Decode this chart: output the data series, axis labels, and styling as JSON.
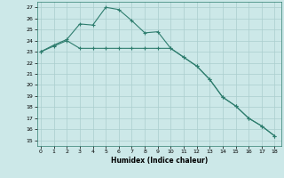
{
  "xlabel": "Humidex (Indice chaleur)",
  "x_ticks": [
    0,
    1,
    2,
    3,
    4,
    5,
    6,
    7,
    8,
    9,
    10,
    11,
    12,
    13,
    14,
    15,
    16,
    17,
    18
  ],
  "ylim": [
    14.5,
    27.5
  ],
  "yticks": [
    15,
    16,
    17,
    18,
    19,
    20,
    21,
    22,
    23,
    24,
    25,
    26,
    27
  ],
  "xlim": [
    -0.3,
    18.5
  ],
  "line1_x": [
    0,
    1,
    2,
    3,
    4,
    5,
    6,
    7,
    8,
    9,
    10,
    11,
    12,
    13,
    14,
    15,
    16,
    17,
    18
  ],
  "line1_y": [
    23.0,
    23.6,
    24.1,
    25.5,
    25.4,
    27.0,
    26.8,
    25.8,
    24.7,
    24.8,
    23.3,
    22.5,
    21.7,
    20.5,
    18.9,
    18.1,
    17.0,
    16.3,
    15.4
  ],
  "line2_x": [
    0,
    1,
    2,
    3,
    4,
    5,
    6,
    7,
    8,
    9,
    10,
    11,
    12,
    13,
    14,
    15,
    16,
    17,
    18
  ],
  "line2_y": [
    23.0,
    23.5,
    24.0,
    23.3,
    23.3,
    23.3,
    23.3,
    23.3,
    23.3,
    23.3,
    23.3,
    22.5,
    21.7,
    20.5,
    18.9,
    18.1,
    17.0,
    16.3,
    15.4
  ],
  "line_color": "#2e7d6e",
  "bg_color": "#cce8e8",
  "grid_color": "#aacece"
}
